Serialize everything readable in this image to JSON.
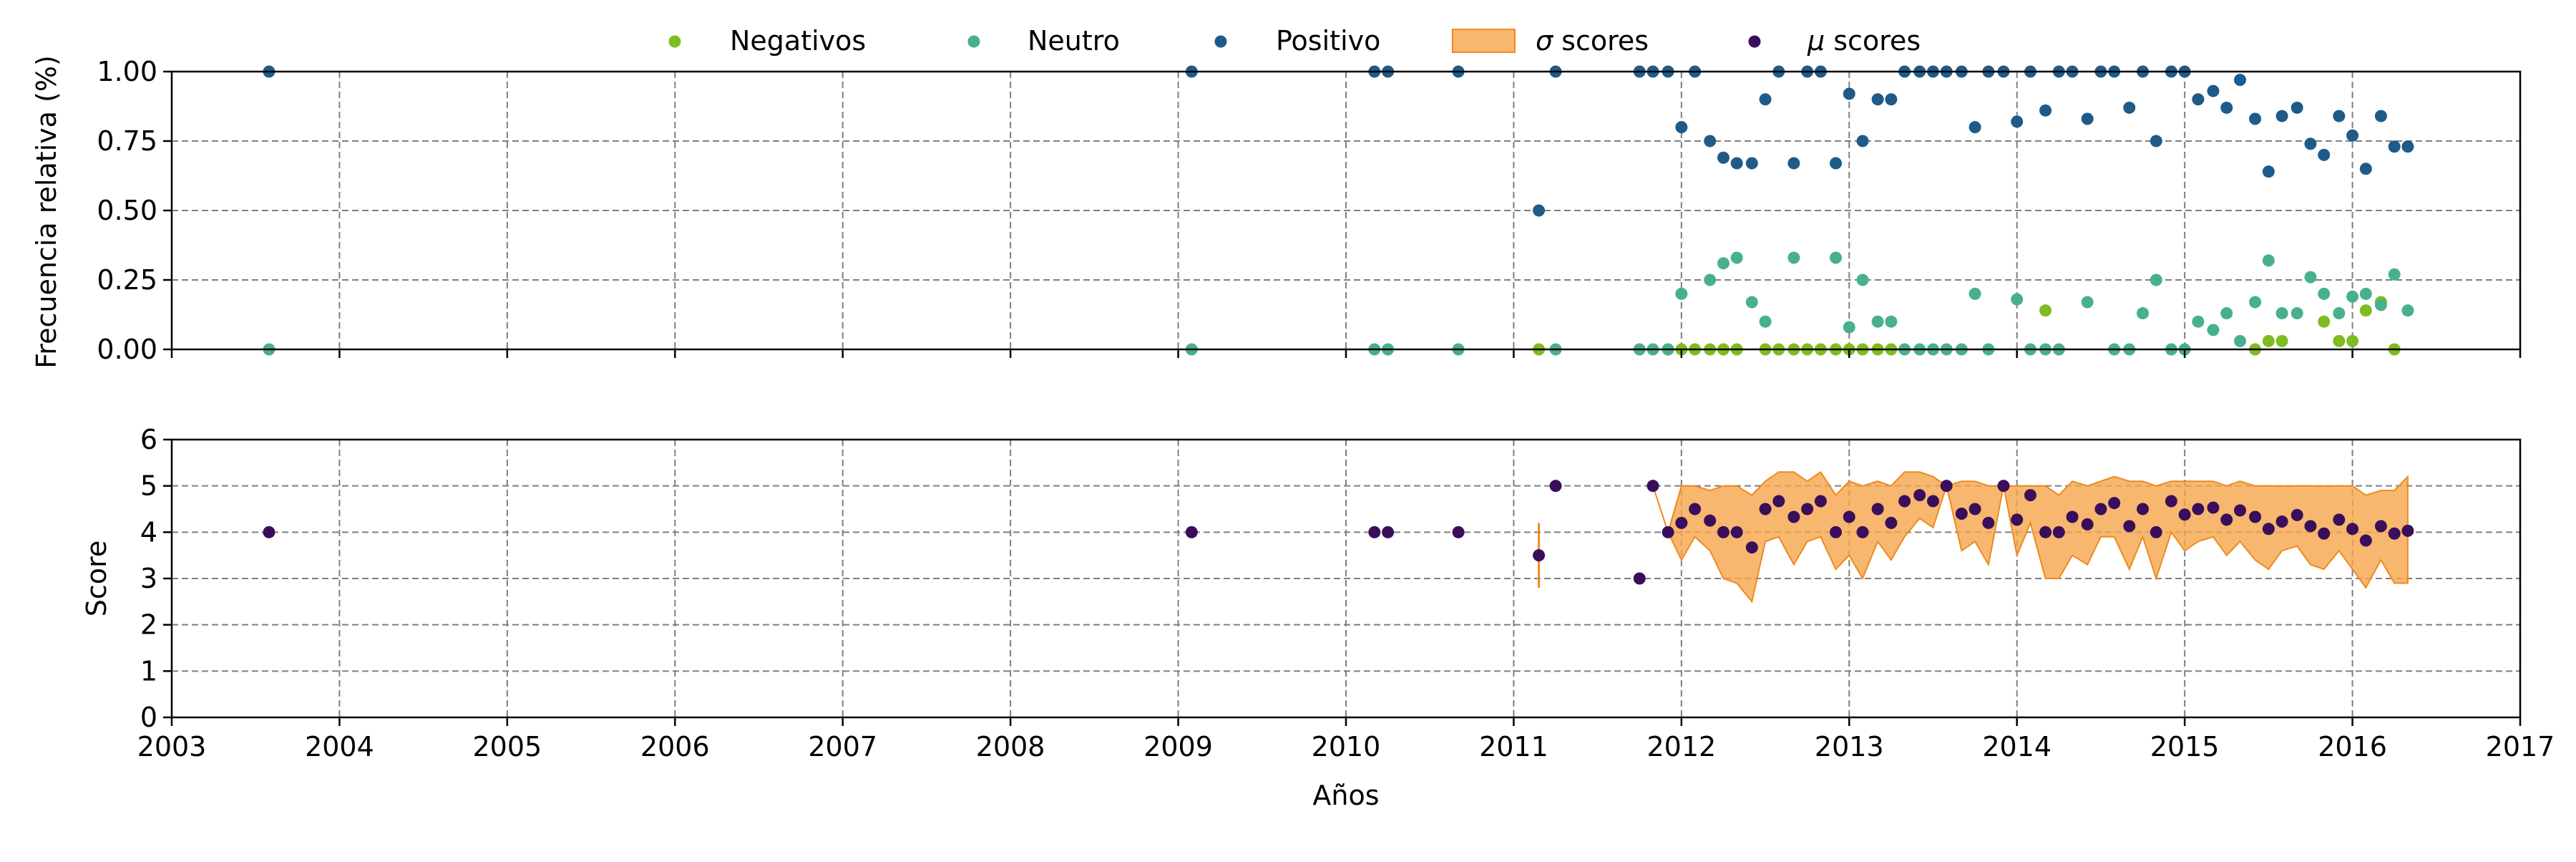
{
  "colors": {
    "negativos": "#7fbc1f",
    "neutro": "#48b08f",
    "positivo": "#1f5b89",
    "sigma_fill": "#f5a54a",
    "sigma_edge": "#ee8a1e",
    "mu": "#3a0e5b",
    "grid": "#7f7f7f"
  },
  "legend": {
    "negativos": "Negativos",
    "neutro": "Neutro",
    "positivo": "Positivo",
    "sigma_symbol": "σ",
    "sigma_text": " scores",
    "mu_symbol": "μ",
    "mu_text": " scores"
  },
  "chart_data": [
    {
      "type": "scatter",
      "ylabel": "Frecuencia relativa (%)",
      "xlim": [
        2003,
        2017
      ],
      "ylim": [
        0,
        1
      ],
      "grid": true,
      "legend_position": "top-center",
      "yticks": [
        "0.00",
        "0.25",
        "0.50",
        "0.75",
        "1.00"
      ],
      "series": [
        {
          "name": "Negativos",
          "x": [
            2011.15,
            2011.92,
            2012.0,
            2012.08,
            2012.17,
            2012.25,
            2012.33,
            2012.5,
            2012.58,
            2012.67,
            2012.75,
            2012.83,
            2012.92,
            2013.0,
            2013.08,
            2013.17,
            2013.25,
            2014.17,
            2015.42,
            2015.5,
            2015.58,
            2015.83,
            2015.92,
            2016.0,
            2016.08,
            2016.17,
            2016.25
          ],
          "y": [
            0,
            0,
            0,
            0,
            0,
            0,
            0,
            0,
            0,
            0,
            0,
            0,
            0,
            0,
            0,
            0,
            0,
            0.14,
            0,
            0.03,
            0.03,
            0.1,
            0.03,
            0.03,
            0.14,
            0.17,
            0
          ]
        },
        {
          "name": "Neutro",
          "x": [
            2003.58,
            2009.08,
            2010.17,
            2010.25,
            2010.67,
            2011.25,
            2011.75,
            2011.83,
            2011.92,
            2012.0,
            2012.17,
            2012.25,
            2012.33,
            2012.42,
            2012.5,
            2012.67,
            2012.92,
            2013.0,
            2013.08,
            2013.17,
            2013.25,
            2013.33,
            2013.42,
            2013.5,
            2013.58,
            2013.67,
            2013.75,
            2013.83,
            2014.0,
            2014.08,
            2014.17,
            2014.25,
            2014.42,
            2014.58,
            2014.67,
            2014.75,
            2014.83,
            2014.92,
            2015.0,
            2015.08,
            2015.17,
            2015.25,
            2015.33,
            2015.42,
            2015.5,
            2015.58,
            2015.67,
            2015.75,
            2015.83,
            2015.92,
            2016.0,
            2016.08,
            2016.17,
            2016.25,
            2016.33
          ],
          "y": [
            0,
            0,
            0,
            0,
            0,
            0,
            0,
            0,
            0,
            0.2,
            0.25,
            0.31,
            0.33,
            0.17,
            0.1,
            0.33,
            0.33,
            0.08,
            0.25,
            0.1,
            0.1,
            0,
            0,
            0,
            0,
            0,
            0.2,
            0,
            0.18,
            0,
            0,
            0,
            0.17,
            0,
            0,
            0.13,
            0.25,
            0,
            0,
            0.1,
            0.07,
            0.13,
            0.03,
            0.17,
            0.32,
            0.13,
            0.13,
            0.26,
            0.2,
            0.13,
            0.19,
            0.2,
            0.16,
            0.27,
            0.14
          ]
        },
        {
          "name": "Positivo",
          "x": [
            2003.58,
            2009.08,
            2010.17,
            2010.25,
            2010.67,
            2011.15,
            2011.25,
            2011.75,
            2011.83,
            2011.92,
            2012.0,
            2012.08,
            2012.17,
            2012.25,
            2012.33,
            2012.42,
            2012.5,
            2012.58,
            2012.67,
            2012.75,
            2012.83,
            2012.92,
            2013.0,
            2013.08,
            2013.17,
            2013.25,
            2013.33,
            2013.42,
            2013.5,
            2013.58,
            2013.67,
            2013.75,
            2013.83,
            2013.92,
            2014.0,
            2014.08,
            2014.17,
            2014.25,
            2014.33,
            2014.42,
            2014.5,
            2014.58,
            2014.67,
            2014.75,
            2014.83,
            2014.92,
            2015.0,
            2015.08,
            2015.17,
            2015.25,
            2015.33,
            2015.42,
            2015.5,
            2015.58,
            2015.67,
            2015.75,
            2015.83,
            2015.92,
            2016.0,
            2016.08,
            2016.17,
            2016.25,
            2016.33
          ],
          "y": [
            1,
            1,
            1,
            1,
            1,
            0.5,
            1,
            1,
            1,
            1,
            0.8,
            1,
            0.75,
            0.69,
            0.67,
            0.67,
            0.9,
            1,
            0.67,
            1,
            1,
            0.67,
            0.92,
            0.75,
            0.9,
            0.9,
            1,
            1,
            1,
            1,
            1,
            0.8,
            1,
            1,
            0.82,
            1,
            0.86,
            1,
            1,
            0.83,
            1,
            1,
            0.87,
            1,
            0.75,
            1,
            1,
            0.9,
            0.93,
            0.87,
            0.97,
            0.83,
            0.64,
            0.84,
            0.87,
            0.74,
            0.7,
            0.84,
            0.77,
            0.65,
            0.84,
            0.73,
            0.73
          ]
        }
      ]
    },
    {
      "type": "scatter",
      "xlabel": "Años",
      "ylabel": "Score",
      "xlim": [
        2003,
        2017
      ],
      "ylim": [
        0,
        6
      ],
      "grid": true,
      "xticks": [
        "2003",
        "2004",
        "2005",
        "2006",
        "2007",
        "2008",
        "2009",
        "2010",
        "2011",
        "2012",
        "2013",
        "2014",
        "2015",
        "2016",
        "2017"
      ],
      "yticks": [
        "0",
        "1",
        "2",
        "3",
        "4",
        "5",
        "6"
      ],
      "series": [
        {
          "name": "μ scores",
          "x": [
            2003.58,
            2009.08,
            2010.17,
            2010.25,
            2010.67,
            2011.15,
            2011.25,
            2011.75,
            2011.83,
            2011.92,
            2012.0,
            2012.08,
            2012.17,
            2012.25,
            2012.33,
            2012.42,
            2012.5,
            2012.58,
            2012.67,
            2012.75,
            2012.83,
            2012.92,
            2013.0,
            2013.08,
            2013.17,
            2013.25,
            2013.33,
            2013.42,
            2013.5,
            2013.58,
            2013.67,
            2013.75,
            2013.83,
            2013.92,
            2014.0,
            2014.08,
            2014.17,
            2014.25,
            2014.33,
            2014.42,
            2014.5,
            2014.58,
            2014.67,
            2014.75,
            2014.83,
            2014.92,
            2015.0,
            2015.08,
            2015.17,
            2015.25,
            2015.33,
            2015.42,
            2015.5,
            2015.58,
            2015.67,
            2015.75,
            2015.83,
            2015.92,
            2016.0,
            2016.08,
            2016.17,
            2016.25,
            2016.33
          ],
          "y": [
            4,
            4,
            4,
            4,
            4,
            3.5,
            5,
            3,
            5,
            4,
            4.2,
            4.5,
            4.25,
            4.0,
            4.0,
            3.67,
            4.5,
            4.67,
            4.33,
            4.5,
            4.67,
            4.0,
            4.33,
            4.0,
            4.5,
            4.2,
            4.67,
            4.8,
            4.67,
            5.0,
            4.4,
            4.5,
            4.2,
            5.0,
            4.27,
            4.8,
            4.0,
            4.0,
            4.33,
            4.17,
            4.5,
            4.63,
            4.13,
            4.5,
            4.0,
            4.67,
            4.38,
            4.5,
            4.53,
            4.27,
            4.47,
            4.33,
            4.07,
            4.23,
            4.37,
            4.13,
            3.97,
            4.27,
            4.07,
            3.82,
            4.13,
            3.97,
            4.03
          ]
        },
        {
          "name": "σ scores",
          "type": "area",
          "x": [
            2011.15,
            2011.83,
            2011.92,
            2012.0,
            2012.08,
            2012.17,
            2012.25,
            2012.33,
            2012.42,
            2012.5,
            2012.58,
            2012.67,
            2012.75,
            2012.83,
            2012.92,
            2013.0,
            2013.08,
            2013.17,
            2013.25,
            2013.33,
            2013.42,
            2013.5,
            2013.58,
            2013.67,
            2013.75,
            2013.83,
            2013.92,
            2014.0,
            2014.08,
            2014.17,
            2014.25,
            2014.33,
            2014.42,
            2014.5,
            2014.58,
            2014.67,
            2014.75,
            2014.83,
            2014.92,
            2015.0,
            2015.08,
            2015.17,
            2015.25,
            2015.33,
            2015.42,
            2015.5,
            2015.58,
            2015.67,
            2015.75,
            2015.83,
            2015.92,
            2016.0,
            2016.08,
            2016.17,
            2016.25,
            2016.33
          ],
          "lower": [
            2.8,
            5.0,
            4.0,
            3.4,
            3.9,
            3.6,
            3.0,
            2.9,
            2.5,
            3.8,
            3.9,
            3.3,
            3.8,
            3.9,
            3.2,
            3.5,
            3.0,
            3.8,
            3.4,
            3.9,
            4.3,
            4.1,
            5.0,
            3.6,
            3.8,
            3.3,
            5.0,
            3.5,
            4.2,
            3.0,
            3.0,
            3.5,
            3.3,
            3.9,
            3.9,
            3.2,
            3.9,
            3.0,
            4.0,
            3.6,
            3.8,
            3.9,
            3.5,
            3.8,
            3.4,
            3.2,
            3.6,
            3.7,
            3.3,
            3.2,
            3.6,
            3.2,
            2.8,
            3.4,
            2.9,
            2.9
          ],
          "upper": [
            4.2,
            5.0,
            4.0,
            5.0,
            5.0,
            4.9,
            5.0,
            5.0,
            4.8,
            5.1,
            5.3,
            5.3,
            5.1,
            5.3,
            4.8,
            5.1,
            5.0,
            5.1,
            5.0,
            5.3,
            5.3,
            5.2,
            5.0,
            5.1,
            5.1,
            5.0,
            5.0,
            5.0,
            5.0,
            5.0,
            4.8,
            5.1,
            5.0,
            5.1,
            5.2,
            5.1,
            5.1,
            5.0,
            5.1,
            5.1,
            5.1,
            5.1,
            5.0,
            5.1,
            5.0,
            5.0,
            5.0,
            5.0,
            5.0,
            5.0,
            5.0,
            5.0,
            4.8,
            4.9,
            4.9,
            5.2
          ]
        }
      ]
    }
  ]
}
